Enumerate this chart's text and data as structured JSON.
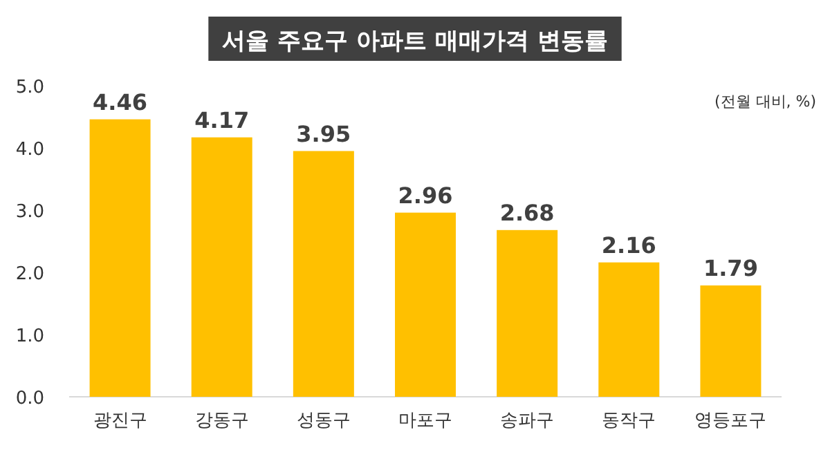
{
  "chart_data": {
    "type": "bar",
    "title": "서울 주요구 아파트 매매가격 변동률",
    "annotations": [
      "(전월 대비, %)"
    ],
    "categories": [
      "광진구",
      "강동구",
      "성동구",
      "마포구",
      "송파구",
      "동작구",
      "영등포구"
    ],
    "values": [
      4.46,
      4.17,
      3.95,
      2.96,
      2.68,
      2.16,
      1.79
    ],
    "color": "#ffc000",
    "data_labels": true,
    "ylim": [
      0,
      5
    ],
    "yticks": [
      {
        "value": 0,
        "label": "0.0"
      },
      {
        "value": 1,
        "label": "1.0"
      },
      {
        "value": 2,
        "label": "2.0"
      },
      {
        "value": 3,
        "label": "3.0"
      },
      {
        "value": 4,
        "label": "4.0"
      },
      {
        "value": 5,
        "label": "5.0"
      }
    ],
    "grid": false
  }
}
